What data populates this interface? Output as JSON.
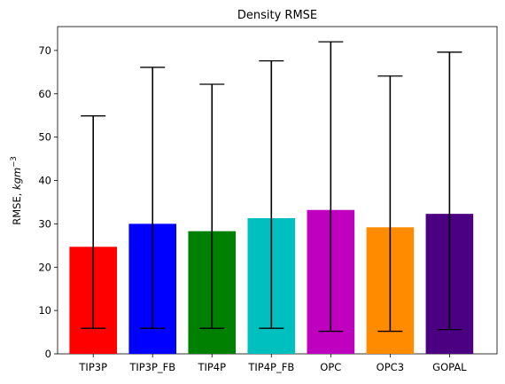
{
  "chart_data": {
    "type": "bar",
    "title": "Density RMSE",
    "xlabel": "",
    "ylabel": "RMSE, kgm⁻³",
    "ylabel_main": "RMSE, ",
    "ylabel_unit": "kgm",
    "ylabel_exp": "−3",
    "categories": [
      "TIP3P",
      "TIP3P_FB",
      "TIP4P",
      "TIP4P_FB",
      "OPC",
      "OPC3",
      "GOPAL"
    ],
    "values": [
      24.7,
      30.0,
      28.3,
      31.3,
      33.2,
      29.2,
      32.3
    ],
    "error_low": [
      5.9,
      5.9,
      5.9,
      5.9,
      5.2,
      5.2,
      5.6
    ],
    "error_high": [
      54.9,
      66.1,
      62.2,
      67.6,
      72.0,
      64.1,
      69.6
    ],
    "colors": [
      "#ff0000",
      "#0000ff",
      "#008000",
      "#00bfbf",
      "#bf00bf",
      "#ff8c00",
      "#4b0082"
    ],
    "error_color": "#000000",
    "ylim": [
      0,
      75.5
    ],
    "yticks": [
      0,
      10,
      20,
      30,
      40,
      50,
      60,
      70
    ],
    "grid": false
  }
}
